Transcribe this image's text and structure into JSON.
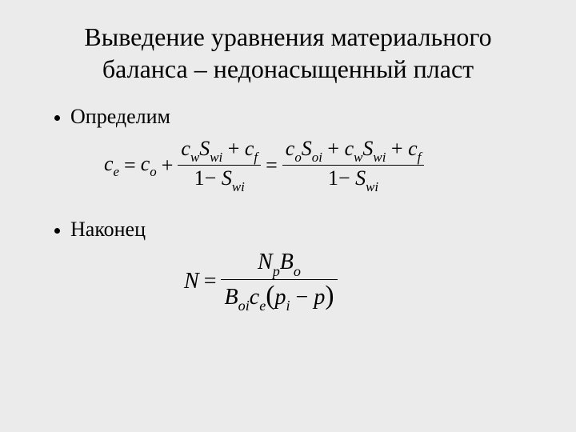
{
  "slide": {
    "background_color": "#ebebeb",
    "text_color": "#000000",
    "title_line1": "Выведение уравнения материального",
    "title_line2": "баланса – недонасыщенный пласт",
    "bullets": {
      "b1": "Определим",
      "b2": "Наконец"
    }
  },
  "formula1": {
    "lhs_var": "c",
    "lhs_sub": "e",
    "eq1": "=",
    "term1_var": "c",
    "term1_sub": "o",
    "plus": "+",
    "frac1": {
      "num_t1_var": "c",
      "num_t1_sub": "w",
      "num_t2_var": "S",
      "num_t2_sub": "wi",
      "num_plus": "+",
      "num_t3_var": "c",
      "num_t3_sub": "f",
      "den_one": "1",
      "den_minus": "−",
      "den_var": "S",
      "den_sub": "wi"
    },
    "eq2": "=",
    "frac2": {
      "num_t1_var": "c",
      "num_t1_sub": "o",
      "num_t2_var": "S",
      "num_t2_sub": "oi",
      "num_plus1": "+",
      "num_t3_var": "c",
      "num_t3_sub": "w",
      "num_t4_var": "S",
      "num_t4_sub": "wi",
      "num_plus2": "+",
      "num_t5_var": "c",
      "num_t5_sub": "f",
      "den_one": "1",
      "den_minus": "−",
      "den_var": "S",
      "den_sub": "wi"
    }
  },
  "formula2": {
    "lhs": "N",
    "eq": "=",
    "num_t1_var": "N",
    "num_t1_sub": "p",
    "num_t2_var": "B",
    "num_t2_sub": "o",
    "den_t1_var": "B",
    "den_t1_sub": "oi",
    "den_t2_var": "c",
    "den_t2_sub": "e",
    "den_open": "(",
    "den_p1_var": "p",
    "den_p1_sub": "i",
    "den_minus": "−",
    "den_p2": "p",
    "den_close": ")"
  },
  "style": {
    "title_fontsize": 32,
    "body_fontsize": 26,
    "formula_fontsize": 26,
    "font_family": "Times New Roman"
  }
}
